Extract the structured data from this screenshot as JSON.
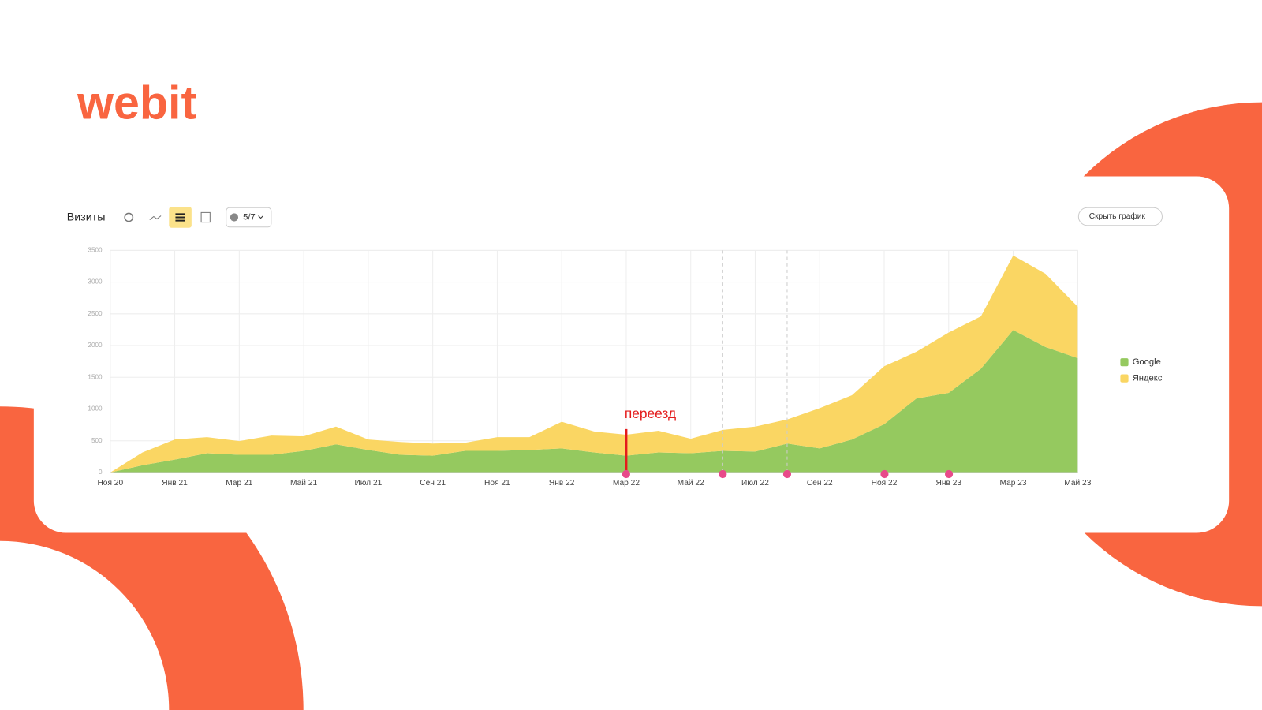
{
  "logo": "webit",
  "toolbar": {
    "title": "Визиты",
    "counter": "5/7",
    "hide_button": "Скрыть график"
  },
  "chart_data": {
    "type": "stacked-area",
    "annotation": "переезд",
    "categories": [
      "Ноя 20",
      null,
      "Янв 21",
      null,
      "Мар 21",
      null,
      "Май 21",
      null,
      "Июл 21",
      null,
      "Сен 21",
      null,
      "Ноя 21",
      null,
      "Янв 22",
      null,
      "Мар 22",
      null,
      "Май 22",
      null,
      "Июл 22",
      null,
      "Сен 22",
      null,
      "Ноя 22",
      null,
      "Янв 23",
      null,
      "Мар 23",
      null,
      "Май 23"
    ],
    "series": [
      {
        "name": "Google",
        "color": "#95c95f",
        "values": [
          0,
          114,
          203,
          304,
          279,
          279,
          342,
          444,
          355,
          279,
          266,
          342,
          342,
          355,
          380,
          317,
          266,
          317,
          304,
          342,
          330,
          456,
          380,
          520,
          761,
          1167,
          1255,
          1636,
          2244,
          1978,
          1801
        ]
      },
      {
        "name": "Яндекс",
        "color": "#fad663",
        "values": [
          0,
          203,
          317,
          254,
          216,
          304,
          229,
          279,
          165,
          203,
          190,
          127,
          216,
          203,
          419,
          330,
          330,
          342,
          229,
          330,
          393,
          381,
          634,
          697,
          913,
          735,
          951,
          824,
          1175,
          1154,
          811
        ]
      }
    ],
    "ylim": [
      0,
      3500
    ],
    "yticks": [
      0,
      500,
      1000,
      1500,
      2000,
      2500,
      3000,
      3500
    ],
    "grid": true
  }
}
